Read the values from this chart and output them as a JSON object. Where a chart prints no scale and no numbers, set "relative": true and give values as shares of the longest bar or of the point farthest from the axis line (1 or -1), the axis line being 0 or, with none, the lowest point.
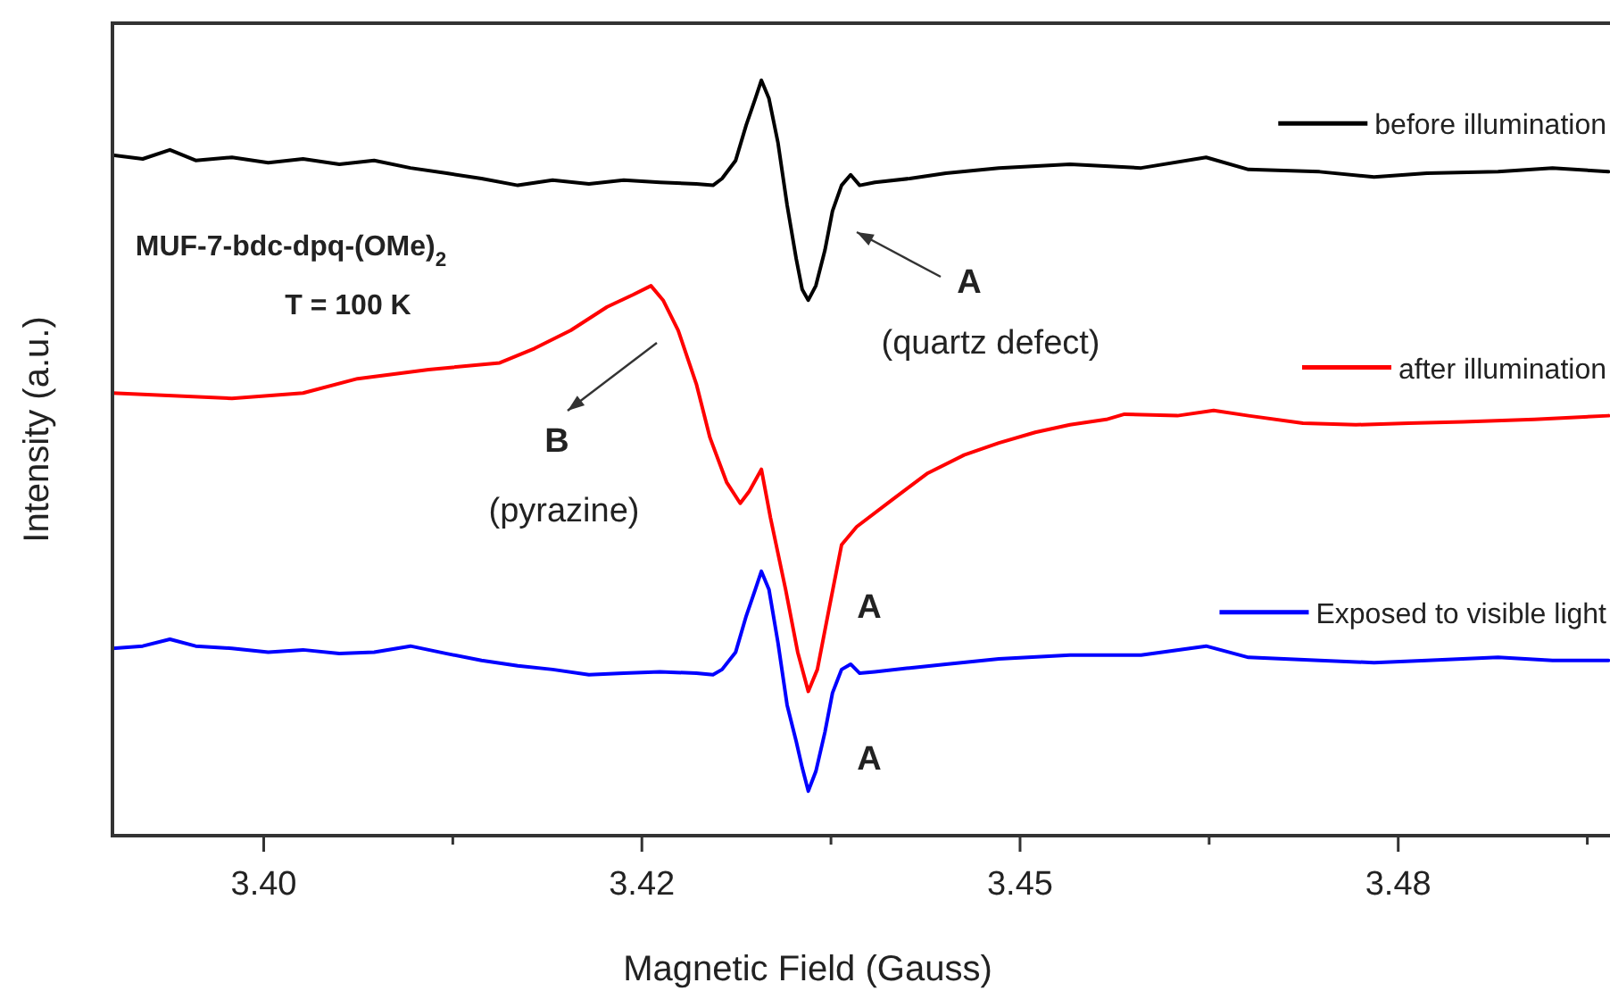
{
  "chart_data": {
    "type": "line",
    "relative": true,
    "xlabel": "Magnetic Field (Gauss)",
    "ylabel": "Intensity (a.u.)",
    "xlim": [
      3.39,
      3.489
    ],
    "xticks": [
      {
        "value": 3.4,
        "label": "3.40"
      },
      {
        "value": 3.4125,
        "label": null
      },
      {
        "value": 3.425,
        "label": "3.42"
      },
      {
        "value": 3.4375,
        "label": null
      },
      {
        "value": 3.45,
        "label": "3.45"
      },
      {
        "value": 3.4625,
        "label": null
      },
      {
        "value": 3.475,
        "label": "3.48"
      },
      {
        "value": 3.4875,
        "label": null
      }
    ],
    "legend": "right",
    "marker": "none",
    "line_style": "solid",
    "annotations": [
      "MUF-7-bdc-dpq-(OMe)$_{2}$",
      "T = 100 K",
      "A",
      "(quartz defect)",
      "B",
      "(pyrazine)",
      "A",
      "A"
    ],
    "series": [
      {
        "name": "before illumination",
        "color": "#000000",
        "x": [
          3.39,
          3.392,
          3.3938,
          3.3955,
          3.3979,
          3.4003,
          3.4026,
          3.405,
          3.4073,
          3.4097,
          3.4121,
          3.4144,
          3.4168,
          3.4191,
          3.4215,
          3.4238,
          3.4262,
          3.4286,
          3.4297,
          3.4303,
          3.4312,
          3.4319,
          3.4325,
          3.4329,
          3.4334,
          3.434,
          3.4346,
          3.4352,
          3.4356,
          3.436,
          3.4365,
          3.4371,
          3.4376,
          3.4382,
          3.4388,
          3.4394,
          3.4404,
          3.4427,
          3.4451,
          3.4486,
          3.4533,
          3.458,
          3.4623,
          3.4651,
          3.4698,
          3.4734,
          3.4769,
          3.4816,
          3.4852,
          3.4889
        ],
        "values": [
          0.901,
          0.896,
          0.908,
          0.894,
          0.898,
          0.891,
          0.896,
          0.889,
          0.894,
          0.884,
          0.877,
          0.87,
          0.861,
          0.868,
          0.863,
          0.868,
          0.865,
          0.863,
          0.861,
          0.87,
          0.894,
          0.941,
          0.976,
          1,
          0.976,
          0.917,
          0.835,
          0.764,
          0.723,
          0.709,
          0.728,
          0.775,
          0.827,
          0.861,
          0.875,
          0.861,
          0.865,
          0.87,
          0.877,
          0.884,
          0.889,
          0.884,
          0.898,
          0.882,
          0.879,
          0.872,
          0.877,
          0.879,
          0.884,
          0.879
        ]
      },
      {
        "name": "after illumination",
        "color": "#ff0000",
        "x": [
          3.39,
          3.3979,
          3.4026,
          3.4062,
          3.4109,
          3.4156,
          3.4179,
          3.4203,
          3.4227,
          3.4244,
          3.4256,
          3.4264,
          3.4274,
          3.4286,
          3.4295,
          3.4306,
          3.4315,
          3.4321,
          3.4329,
          3.4335,
          3.4345,
          3.4353,
          3.436,
          3.4366,
          3.4374,
          3.4382,
          3.4392,
          3.4415,
          3.4439,
          3.4463,
          3.4486,
          3.451,
          3.4533,
          3.4557,
          3.4569,
          3.4604,
          3.4628,
          3.4651,
          3.4687,
          3.4722,
          3.4757,
          3.4793,
          3.484,
          3.4889
        ],
        "values": [
          0.586,
          0.579,
          0.586,
          0.605,
          0.617,
          0.626,
          0.645,
          0.669,
          0.7,
          0.716,
          0.728,
          0.709,
          0.669,
          0.598,
          0.527,
          0.468,
          0.44,
          0.456,
          0.485,
          0.421,
          0.326,
          0.243,
          0.191,
          0.22,
          0.303,
          0.385,
          0.409,
          0.444,
          0.48,
          0.504,
          0.52,
          0.534,
          0.544,
          0.551,
          0.558,
          0.556,
          0.563,
          0.556,
          0.546,
          0.544,
          0.546,
          0.548,
          0.551,
          0.556
        ]
      },
      {
        "name": "Exposed to visible light",
        "color": "#0000ff",
        "x": [
          3.39,
          3.392,
          3.3938,
          3.3955,
          3.3979,
          3.4003,
          3.4026,
          3.405,
          3.4073,
          3.4097,
          3.4121,
          3.4144,
          3.4168,
          3.4191,
          3.4215,
          3.4238,
          3.4262,
          3.4286,
          3.4297,
          3.4303,
          3.4312,
          3.4319,
          3.4325,
          3.4329,
          3.4334,
          3.434,
          3.4346,
          3.4352,
          3.4356,
          3.436,
          3.4365,
          3.4371,
          3.4376,
          3.4382,
          3.4388,
          3.4394,
          3.4404,
          3.4427,
          3.4451,
          3.4486,
          3.4533,
          3.458,
          3.4623,
          3.4651,
          3.4698,
          3.4734,
          3.4769,
          3.4816,
          3.4852,
          3.4889
        ],
        "values": [
          0.248,
          0.251,
          0.26,
          0.251,
          0.248,
          0.243,
          0.246,
          0.241,
          0.243,
          0.251,
          0.241,
          0.232,
          0.225,
          0.22,
          0.213,
          0.215,
          0.217,
          0.215,
          0.213,
          0.22,
          0.243,
          0.291,
          0.326,
          0.35,
          0.326,
          0.255,
          0.173,
          0.125,
          0.09,
          0.059,
          0.085,
          0.137,
          0.189,
          0.22,
          0.227,
          0.215,
          0.217,
          0.222,
          0.227,
          0.234,
          0.239,
          0.239,
          0.251,
          0.236,
          0.232,
          0.229,
          0.232,
          0.236,
          0.232,
          0.232
        ]
      }
    ]
  }
}
